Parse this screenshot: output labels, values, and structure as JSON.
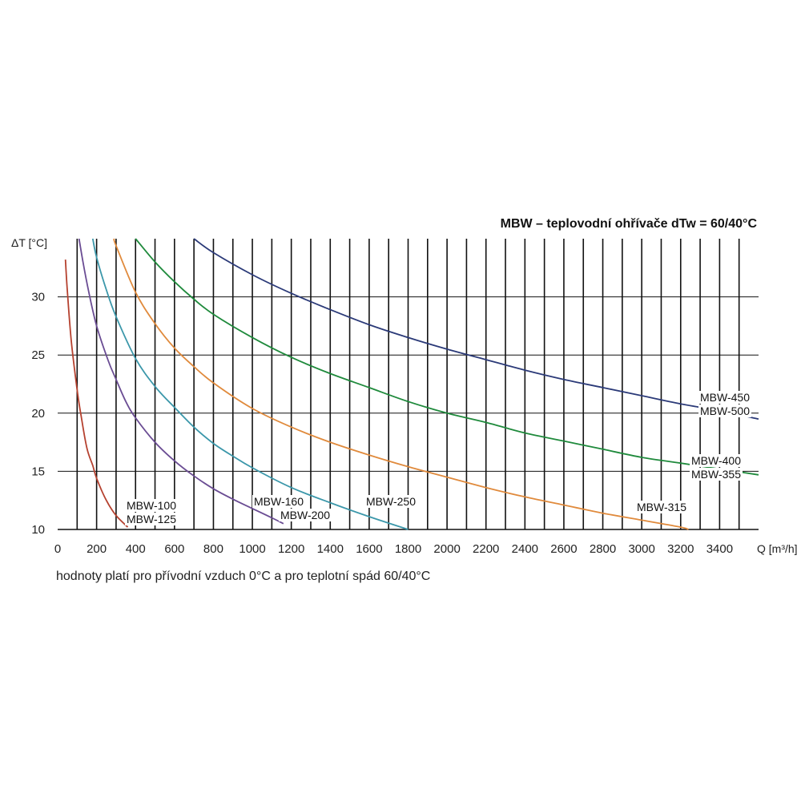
{
  "chart_data": {
    "type": "line",
    "title": "MBW – teplovodní ohřívače dTw = 60/40°C",
    "xlabel": "Q [m³/h]",
    "ylabel": "ΔT [°C]",
    "xlim": [
      0,
      3600
    ],
    "ylim": [
      10,
      35
    ],
    "x_ticks": [
      "0",
      "200",
      "400",
      "600",
      "800",
      "1000",
      "1200",
      "1400",
      "1600",
      "1800",
      "2000",
      "2200",
      "2400",
      "2600",
      "2800",
      "3000",
      "3200",
      "3400"
    ],
    "y_ticks": [
      "10",
      "15",
      "20",
      "25",
      "30"
    ],
    "vertical_grid_step": 100,
    "horizontal_grid_step": 5,
    "note": "hodnoty platí pro přívodní vzduch 0°C a pro teplotní spád 60/40°C",
    "series": [
      {
        "name": "MBW-100 / MBW-125",
        "color": "#b5412f",
        "points": [
          [
            40,
            33.2
          ],
          [
            50,
            30.4
          ],
          [
            70,
            26.2
          ],
          [
            100,
            22.0
          ],
          [
            120,
            19.8
          ],
          [
            150,
            17.0
          ],
          [
            180,
            15.5
          ],
          [
            200,
            14.4
          ],
          [
            250,
            12.5
          ],
          [
            300,
            11.2
          ],
          [
            360,
            10.2
          ]
        ]
      },
      {
        "name": "MBW-160 / MBW-200",
        "color": "#6a4c93",
        "points": [
          [
            110,
            35.0
          ],
          [
            130,
            33.0
          ],
          [
            160,
            30.4
          ],
          [
            200,
            27.5
          ],
          [
            260,
            24.5
          ],
          [
            300,
            22.9
          ],
          [
            350,
            21.0
          ],
          [
            400,
            19.6
          ],
          [
            500,
            17.5
          ],
          [
            600,
            15.9
          ],
          [
            700,
            14.6
          ],
          [
            800,
            13.5
          ],
          [
            900,
            12.6
          ],
          [
            1000,
            11.8
          ],
          [
            1100,
            11.0
          ],
          [
            1160,
            10.5
          ]
        ]
      },
      {
        "name": "MBW-250",
        "color": "#3b97aa",
        "points": [
          [
            180,
            35.0
          ],
          [
            200,
            33.4
          ],
          [
            250,
            30.6
          ],
          [
            300,
            28.3
          ],
          [
            400,
            24.7
          ],
          [
            500,
            22.3
          ],
          [
            600,
            20.5
          ],
          [
            700,
            18.8
          ],
          [
            800,
            17.4
          ],
          [
            900,
            16.3
          ],
          [
            1000,
            15.3
          ],
          [
            1200,
            13.6
          ],
          [
            1400,
            12.3
          ],
          [
            1600,
            11.1
          ],
          [
            1800,
            10.0
          ]
        ]
      },
      {
        "name": "MBW-315",
        "color": "#e08a3c",
        "points": [
          [
            290,
            35.0
          ],
          [
            300,
            34.4
          ],
          [
            400,
            30.4
          ],
          [
            500,
            27.7
          ],
          [
            600,
            25.6
          ],
          [
            700,
            24.0
          ],
          [
            800,
            22.6
          ],
          [
            1000,
            20.4
          ],
          [
            1200,
            18.8
          ],
          [
            1400,
            17.5
          ],
          [
            1600,
            16.4
          ],
          [
            1800,
            15.4
          ],
          [
            2000,
            14.5
          ],
          [
            2200,
            13.6
          ],
          [
            2400,
            12.8
          ],
          [
            2600,
            12.1
          ],
          [
            2800,
            11.4
          ],
          [
            3000,
            10.8
          ],
          [
            3200,
            10.2
          ],
          [
            3240,
            10.0
          ]
        ]
      },
      {
        "name": "MBW-400 / MBW-355",
        "color": "#1f8a3c",
        "points": [
          [
            400,
            35.0
          ],
          [
            500,
            33.0
          ],
          [
            600,
            31.3
          ],
          [
            700,
            29.8
          ],
          [
            800,
            28.5
          ],
          [
            1000,
            26.5
          ],
          [
            1200,
            24.8
          ],
          [
            1400,
            23.4
          ],
          [
            1600,
            22.2
          ],
          [
            1800,
            21.0
          ],
          [
            2000,
            20.0
          ],
          [
            2200,
            19.2
          ],
          [
            2400,
            18.3
          ],
          [
            2600,
            17.6
          ],
          [
            2800,
            16.9
          ],
          [
            3000,
            16.2
          ],
          [
            3200,
            15.7
          ],
          [
            3400,
            15.2
          ],
          [
            3600,
            14.7
          ]
        ]
      },
      {
        "name": "MBW-450 / MBW-500",
        "color": "#2b3a78",
        "points": [
          [
            700,
            35.0
          ],
          [
            800,
            33.8
          ],
          [
            1000,
            31.9
          ],
          [
            1200,
            30.3
          ],
          [
            1400,
            28.9
          ],
          [
            1600,
            27.6
          ],
          [
            1800,
            26.5
          ],
          [
            2000,
            25.5
          ],
          [
            2200,
            24.6
          ],
          [
            2400,
            23.7
          ],
          [
            2600,
            22.9
          ],
          [
            2800,
            22.2
          ],
          [
            3000,
            21.5
          ],
          [
            3200,
            20.8
          ],
          [
            3400,
            20.2
          ],
          [
            3600,
            19.5
          ]
        ]
      }
    ],
    "labels": [
      {
        "lines": [
          "MBW-100",
          "MBW-125"
        ]
      },
      {
        "lines": [
          "MBW-160",
          "MBW-200"
        ]
      },
      {
        "lines": [
          "MBW-250"
        ]
      },
      {
        "lines": [
          "MBW-315"
        ]
      },
      {
        "lines": [
          "MBW-400",
          "MBW-355"
        ]
      },
      {
        "lines": [
          "MBW-450",
          "MBW-500"
        ]
      }
    ]
  }
}
